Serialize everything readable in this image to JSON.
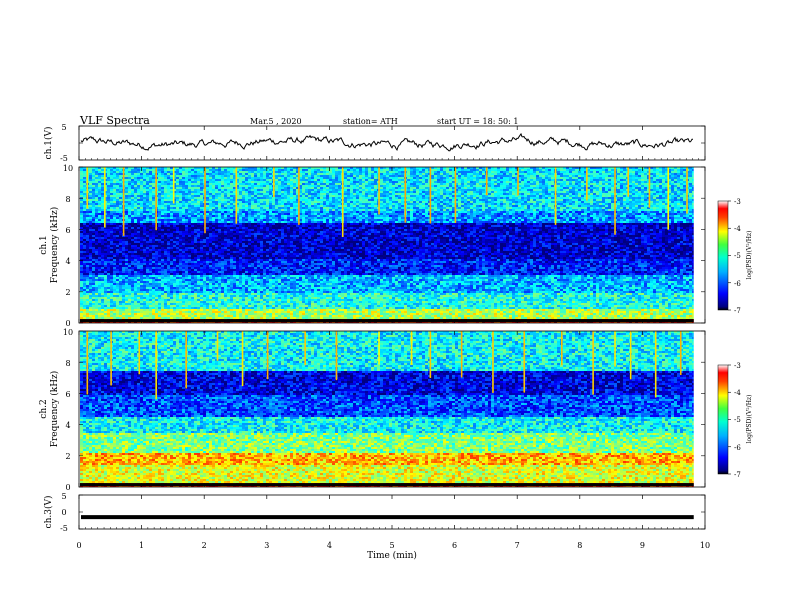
{
  "header": {
    "title": "VLF Spectra",
    "date": "Mar.5 , 2020",
    "station": "station= ATH",
    "start": "start UT = 18: 50: 1"
  },
  "colors": {
    "axis": "#000000",
    "trace": "#000000",
    "spectrogram_low": "#000080",
    "spectrogram_mid": "#00ffff",
    "spectrogram_high": "#ff0000"
  },
  "colorbar": {
    "label": "log(PSD)(V²/Hz)",
    "ticks": [
      "-3",
      "-4",
      "-5",
      "-6",
      "-7"
    ],
    "colormap": "jet"
  },
  "chart_data": [
    {
      "type": "line",
      "ylabel": "ch.1(V)",
      "ylim": [
        -5,
        5
      ],
      "y_tick_labels": [
        "5",
        "-5"
      ],
      "xlim": [
        0,
        10
      ],
      "x_trace_end": 9.82,
      "series": [
        {
          "values": [
            0
          ]
        }
      ]
    },
    {
      "type": "heatmap",
      "ylabel": "ch.1",
      "ylabel2": "Frequency (kHz)",
      "ylim": [
        0,
        10
      ],
      "y_tick_labels": [
        "10",
        "8",
        "6",
        "4",
        "2",
        "0"
      ],
      "xlim": [
        0,
        10
      ],
      "x_data_end": 9.82,
      "value_range": [
        -7,
        -3
      ],
      "bands": [
        {
          "range": [
            0,
            0.3
          ],
          "level": -3.5
        },
        {
          "range": [
            0.3,
            1.0
          ],
          "level": -4.8
        },
        {
          "range": [
            1.0,
            2.0
          ],
          "level": -5.4
        },
        {
          "range": [
            2.0,
            3.2
          ],
          "level": -5.8
        },
        {
          "range": [
            3.2,
            4.2
          ],
          "level": -6.4
        },
        {
          "range": [
            4.2,
            6.5
          ],
          "level": -6.7
        },
        {
          "range": [
            6.5,
            7.2
          ],
          "level": -5.9
        },
        {
          "range": [
            7.2,
            10
          ],
          "level": -5.6
        }
      ],
      "sferic_times": [
        0.12,
        0.4,
        0.7,
        1.22,
        1.5,
        2.0,
        2.5,
        3.1,
        3.5,
        4.2,
        4.78,
        5.2,
        5.6,
        6.0,
        6.5,
        7.0,
        7.6,
        8.1,
        8.55,
        8.76,
        9.1,
        9.4,
        9.7
      ]
    },
    {
      "type": "heatmap",
      "ylabel": "ch.2",
      "ylabel2": "Frequency (kHz)",
      "ylim": [
        0,
        10
      ],
      "y_tick_labels": [
        "10",
        "8",
        "6",
        "4",
        "2",
        "0"
      ],
      "xlim": [
        0,
        10
      ],
      "x_data_end": 9.82,
      "value_range": [
        -7,
        -3
      ],
      "bands": [
        {
          "range": [
            0,
            0.3
          ],
          "level": -3.6
        },
        {
          "range": [
            0.3,
            1.5
          ],
          "level": -4.6
        },
        {
          "range": [
            1.5,
            2.2
          ],
          "level": -4.2
        },
        {
          "range": [
            2.2,
            3.5
          ],
          "level": -5.0
        },
        {
          "range": [
            3.5,
            4.5
          ],
          "level": -5.5
        },
        {
          "range": [
            4.5,
            6.0
          ],
          "level": -6.2
        },
        {
          "range": [
            6.0,
            7.5
          ],
          "level": -6.6
        },
        {
          "range": [
            7.5,
            10
          ],
          "level": -5.5
        }
      ],
      "sferic_times": [
        0.12,
        0.5,
        0.95,
        1.22,
        1.7,
        2.2,
        2.6,
        3.0,
        3.6,
        4.1,
        4.78,
        5.3,
        5.6,
        6.1,
        6.6,
        7.1,
        7.7,
        8.2,
        8.55,
        8.8,
        9.2,
        9.6
      ]
    },
    {
      "type": "line",
      "ylabel": "ch.3(V)",
      "ylim": [
        -5,
        5
      ],
      "y_tick_labels": [
        "5",
        "0",
        "-5"
      ],
      "xlim": [
        0,
        10
      ],
      "x_trace_end": 9.82,
      "series": [
        {
          "values": [
            -1.5
          ]
        }
      ]
    }
  ],
  "xaxis": {
    "label": "Time (min)",
    "ticks": [
      "0",
      "1",
      "2",
      "3",
      "4",
      "5",
      "6",
      "7",
      "8",
      "9",
      "10"
    ]
  }
}
